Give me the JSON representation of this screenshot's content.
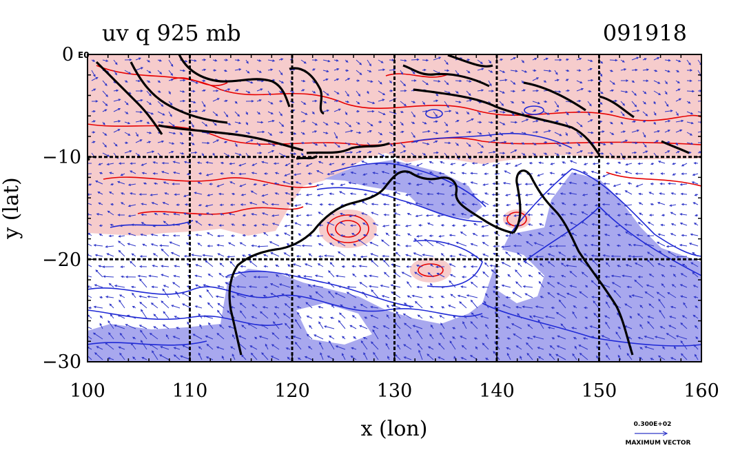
{
  "title_left": "uv q 925 mb",
  "title_right": "091918",
  "x_axis_label": "x (lon)",
  "y_axis_label": "y (lat)",
  "corner_label": "E0",
  "x_ticks": [
    "100",
    "110",
    "120",
    "130",
    "140",
    "150",
    "160"
  ],
  "y_ticks": [
    "0",
    "−10",
    "−20",
    "−30"
  ],
  "vector_scale_value": "0.300E+02",
  "vector_scale_label": "MAXIMUM VECTOR",
  "map": {
    "lon_range": [
      100,
      160
    ],
    "lat_range": [
      -30,
      0
    ],
    "grid_lon": [
      110,
      120,
      130,
      140,
      150
    ],
    "grid_lat": [
      -10,
      -20
    ],
    "colors": {
      "positive_fill": "#f6cccc",
      "positive_contour": "#e60000",
      "negative_fill": "#a8a8ee",
      "negative_contour": "#1e28d6",
      "coastline": "#000000",
      "vectors": "#2e36c8"
    }
  }
}
